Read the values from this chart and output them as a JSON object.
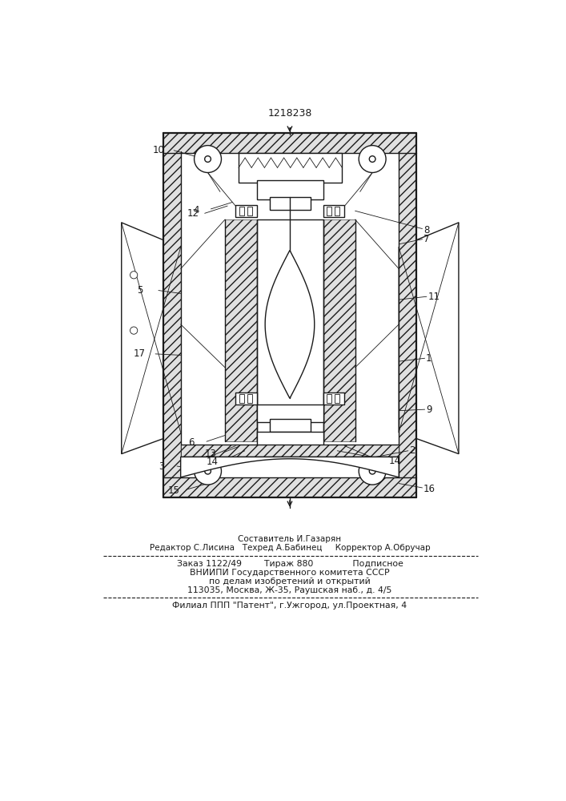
{
  "patent_number": "1218238",
  "footer": {
    "line1_center": "Составитель И.Газарян",
    "line2": "Редактор С.Лисина   Техред А.Бабинец     Корректор А.Обручар",
    "line3": "Заказ 1122/49        Тираж 880              Подписное",
    "line4": "ВНИИПИ Государственного комитета СССР",
    "line5": "по делам изобретений и открытий",
    "line6": "113035, Москва, Ж-35, Раушская наб., д. 4/5",
    "line7": "Филиал ППП \"Патент\", г.Ужгород, ул.Проектная, 4"
  },
  "bg_color": "#ffffff",
  "line_color": "#1a1a1a"
}
